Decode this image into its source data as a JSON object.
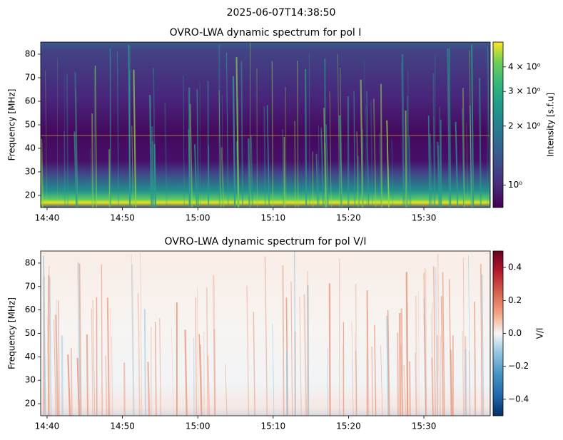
{
  "figure_title": "2025-06-07T14:38:50",
  "chart_data": [
    {
      "type": "heatmap",
      "title": "OVRO-LWA dynamic spectrum for pol I",
      "ylabel": "Frequency [MHz]",
      "xlim": [
        879.15,
        938.8
      ],
      "xticks": [
        {
          "value": 880,
          "label": "14:40"
        },
        {
          "value": 890,
          "label": "14:50"
        },
        {
          "value": 900,
          "label": "15:00"
        },
        {
          "value": 910,
          "label": "15:10"
        },
        {
          "value": 920,
          "label": "15:20"
        },
        {
          "value": 930,
          "label": "15:30"
        }
      ],
      "ylim": [
        14.85,
        85.15
      ],
      "yticks": [
        20,
        30,
        40,
        50,
        60,
        70,
        80
      ],
      "colormap": "viridis",
      "colorbar": {
        "label": "Intensity [s.f.u]",
        "scale": "log",
        "lim": [
          0.77,
          5.35
        ],
        "ticks": [
          {
            "value": 1,
            "label": "10⁰"
          },
          {
            "value": 2,
            "label": "2 × 10⁰"
          },
          {
            "value": 3,
            "label": "3 × 10⁰"
          },
          {
            "value": 4,
            "label": "4 × 10⁰"
          }
        ]
      }
    },
    {
      "type": "heatmap",
      "title": "OVRO-LWA dynamic spectrum for pol V/I",
      "ylabel": "Frequency [MHz]",
      "xlim": [
        879.15,
        938.8
      ],
      "xticks": [
        {
          "value": 880,
          "label": "14:40"
        },
        {
          "value": 890,
          "label": "14:50"
        },
        {
          "value": 900,
          "label": "15:00"
        },
        {
          "value": 910,
          "label": "15:10"
        },
        {
          "value": 920,
          "label": "15:20"
        },
        {
          "value": 930,
          "label": "15:30"
        }
      ],
      "ylim": [
        14.85,
        85.15
      ],
      "yticks": [
        20,
        30,
        40,
        50,
        60,
        70,
        80
      ],
      "colormap": "RdBu_r",
      "colorbar": {
        "label": "V/I",
        "scale": "linear",
        "lim": [
          -0.5,
          0.5
        ],
        "ticks": [
          {
            "value": -0.4,
            "label": "−0.4"
          },
          {
            "value": -0.2,
            "label": "−0.2"
          },
          {
            "value": 0,
            "label": "0.0"
          },
          0.2,
          0.4
        ]
      }
    }
  ]
}
